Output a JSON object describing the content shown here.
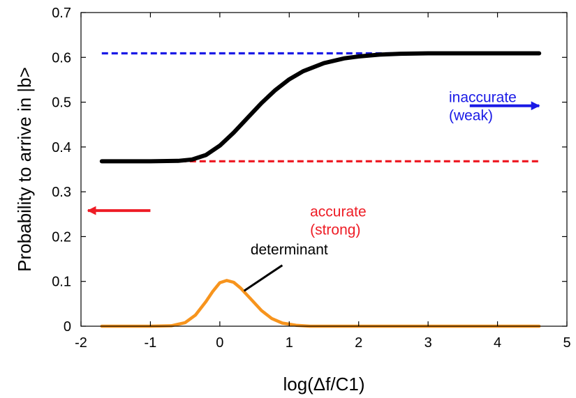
{
  "chart_data": {
    "type": "line",
    "title": "",
    "xlabel": "log(Δf/C1)",
    "ylabel": "Probability to arrive in |b>",
    "xlim": [
      -2,
      5
    ],
    "ylim": [
      0,
      0.7
    ],
    "xticks": [
      -2,
      -1,
      0,
      1,
      2,
      3,
      4,
      5
    ],
    "xtick_labels": [
      "-2",
      "-1",
      "0",
      "1",
      "2",
      "3",
      "4",
      "5"
    ],
    "yticks": [
      0,
      0.1,
      0.2,
      0.3,
      0.4,
      0.5,
      0.6,
      0.7
    ],
    "ytick_labels": [
      "0",
      "0.1",
      "0.2",
      "0.3",
      "0.4",
      "0.5",
      "0.6",
      "0.7"
    ],
    "grid": false,
    "legend": "none",
    "series": [
      {
        "color": "#000000",
        "style": "solid",
        "x": [
          -1.7,
          -1.0,
          -0.6,
          -0.4,
          -0.2,
          0.0,
          0.2,
          0.4,
          0.6,
          0.8,
          1.0,
          1.2,
          1.5,
          1.8,
          2.0,
          2.3,
          2.6,
          3.0,
          3.5,
          4.0,
          4.6
        ],
        "values": [
          0.368,
          0.368,
          0.369,
          0.372,
          0.382,
          0.403,
          0.432,
          0.465,
          0.498,
          0.527,
          0.551,
          0.569,
          0.587,
          0.598,
          0.602,
          0.606,
          0.608,
          0.609,
          0.609,
          0.609,
          0.609
        ]
      },
      {
        "color": "#1a1ae6",
        "style": "dashed",
        "x": [
          -1.7,
          4.6
        ],
        "values": [
          0.609,
          0.609
        ]
      },
      {
        "color": "#ee1c25",
        "style": "dashed",
        "x": [
          -1.7,
          4.6
        ],
        "values": [
          0.368,
          0.368
        ]
      },
      {
        "color": "#f7941d",
        "style": "solid",
        "x": [
          -1.7,
          -1.0,
          -0.7,
          -0.5,
          -0.35,
          -0.2,
          -0.1,
          0.0,
          0.1,
          0.2,
          0.3,
          0.45,
          0.6,
          0.75,
          0.9,
          1.1,
          1.3,
          2.0,
          3.0,
          4.0,
          4.6
        ],
        "values": [
          0.0,
          0.0,
          0.001,
          0.008,
          0.025,
          0.055,
          0.078,
          0.097,
          0.102,
          0.098,
          0.085,
          0.06,
          0.035,
          0.017,
          0.007,
          0.002,
          0.0,
          0.0,
          0.0,
          0.0,
          0.0
        ]
      }
    ],
    "annotations": [
      {
        "id": "inaccurate",
        "lines": [
          "inaccurate",
          "(weak)"
        ],
        "color": "#1a1ae6",
        "x": 3.3,
        "y": 0.5,
        "arrow": "right",
        "arrow_x": [
          3.6,
          4.6
        ],
        "arrow_y": 0.492
      },
      {
        "id": "accurate",
        "lines": [
          "accurate",
          "(strong)"
        ],
        "color": "#ee1c25",
        "x": 1.3,
        "y": 0.245,
        "arrow": "left",
        "arrow_x": [
          -1.0,
          -1.9
        ],
        "arrow_y": 0.258
      },
      {
        "id": "determinant",
        "lines": [
          "determinant"
        ],
        "color": "#000000",
        "x": 1.0,
        "y": 0.16,
        "leader_from": [
          0.9,
          0.136
        ],
        "leader_to": [
          0.35,
          0.079
        ]
      }
    ]
  }
}
